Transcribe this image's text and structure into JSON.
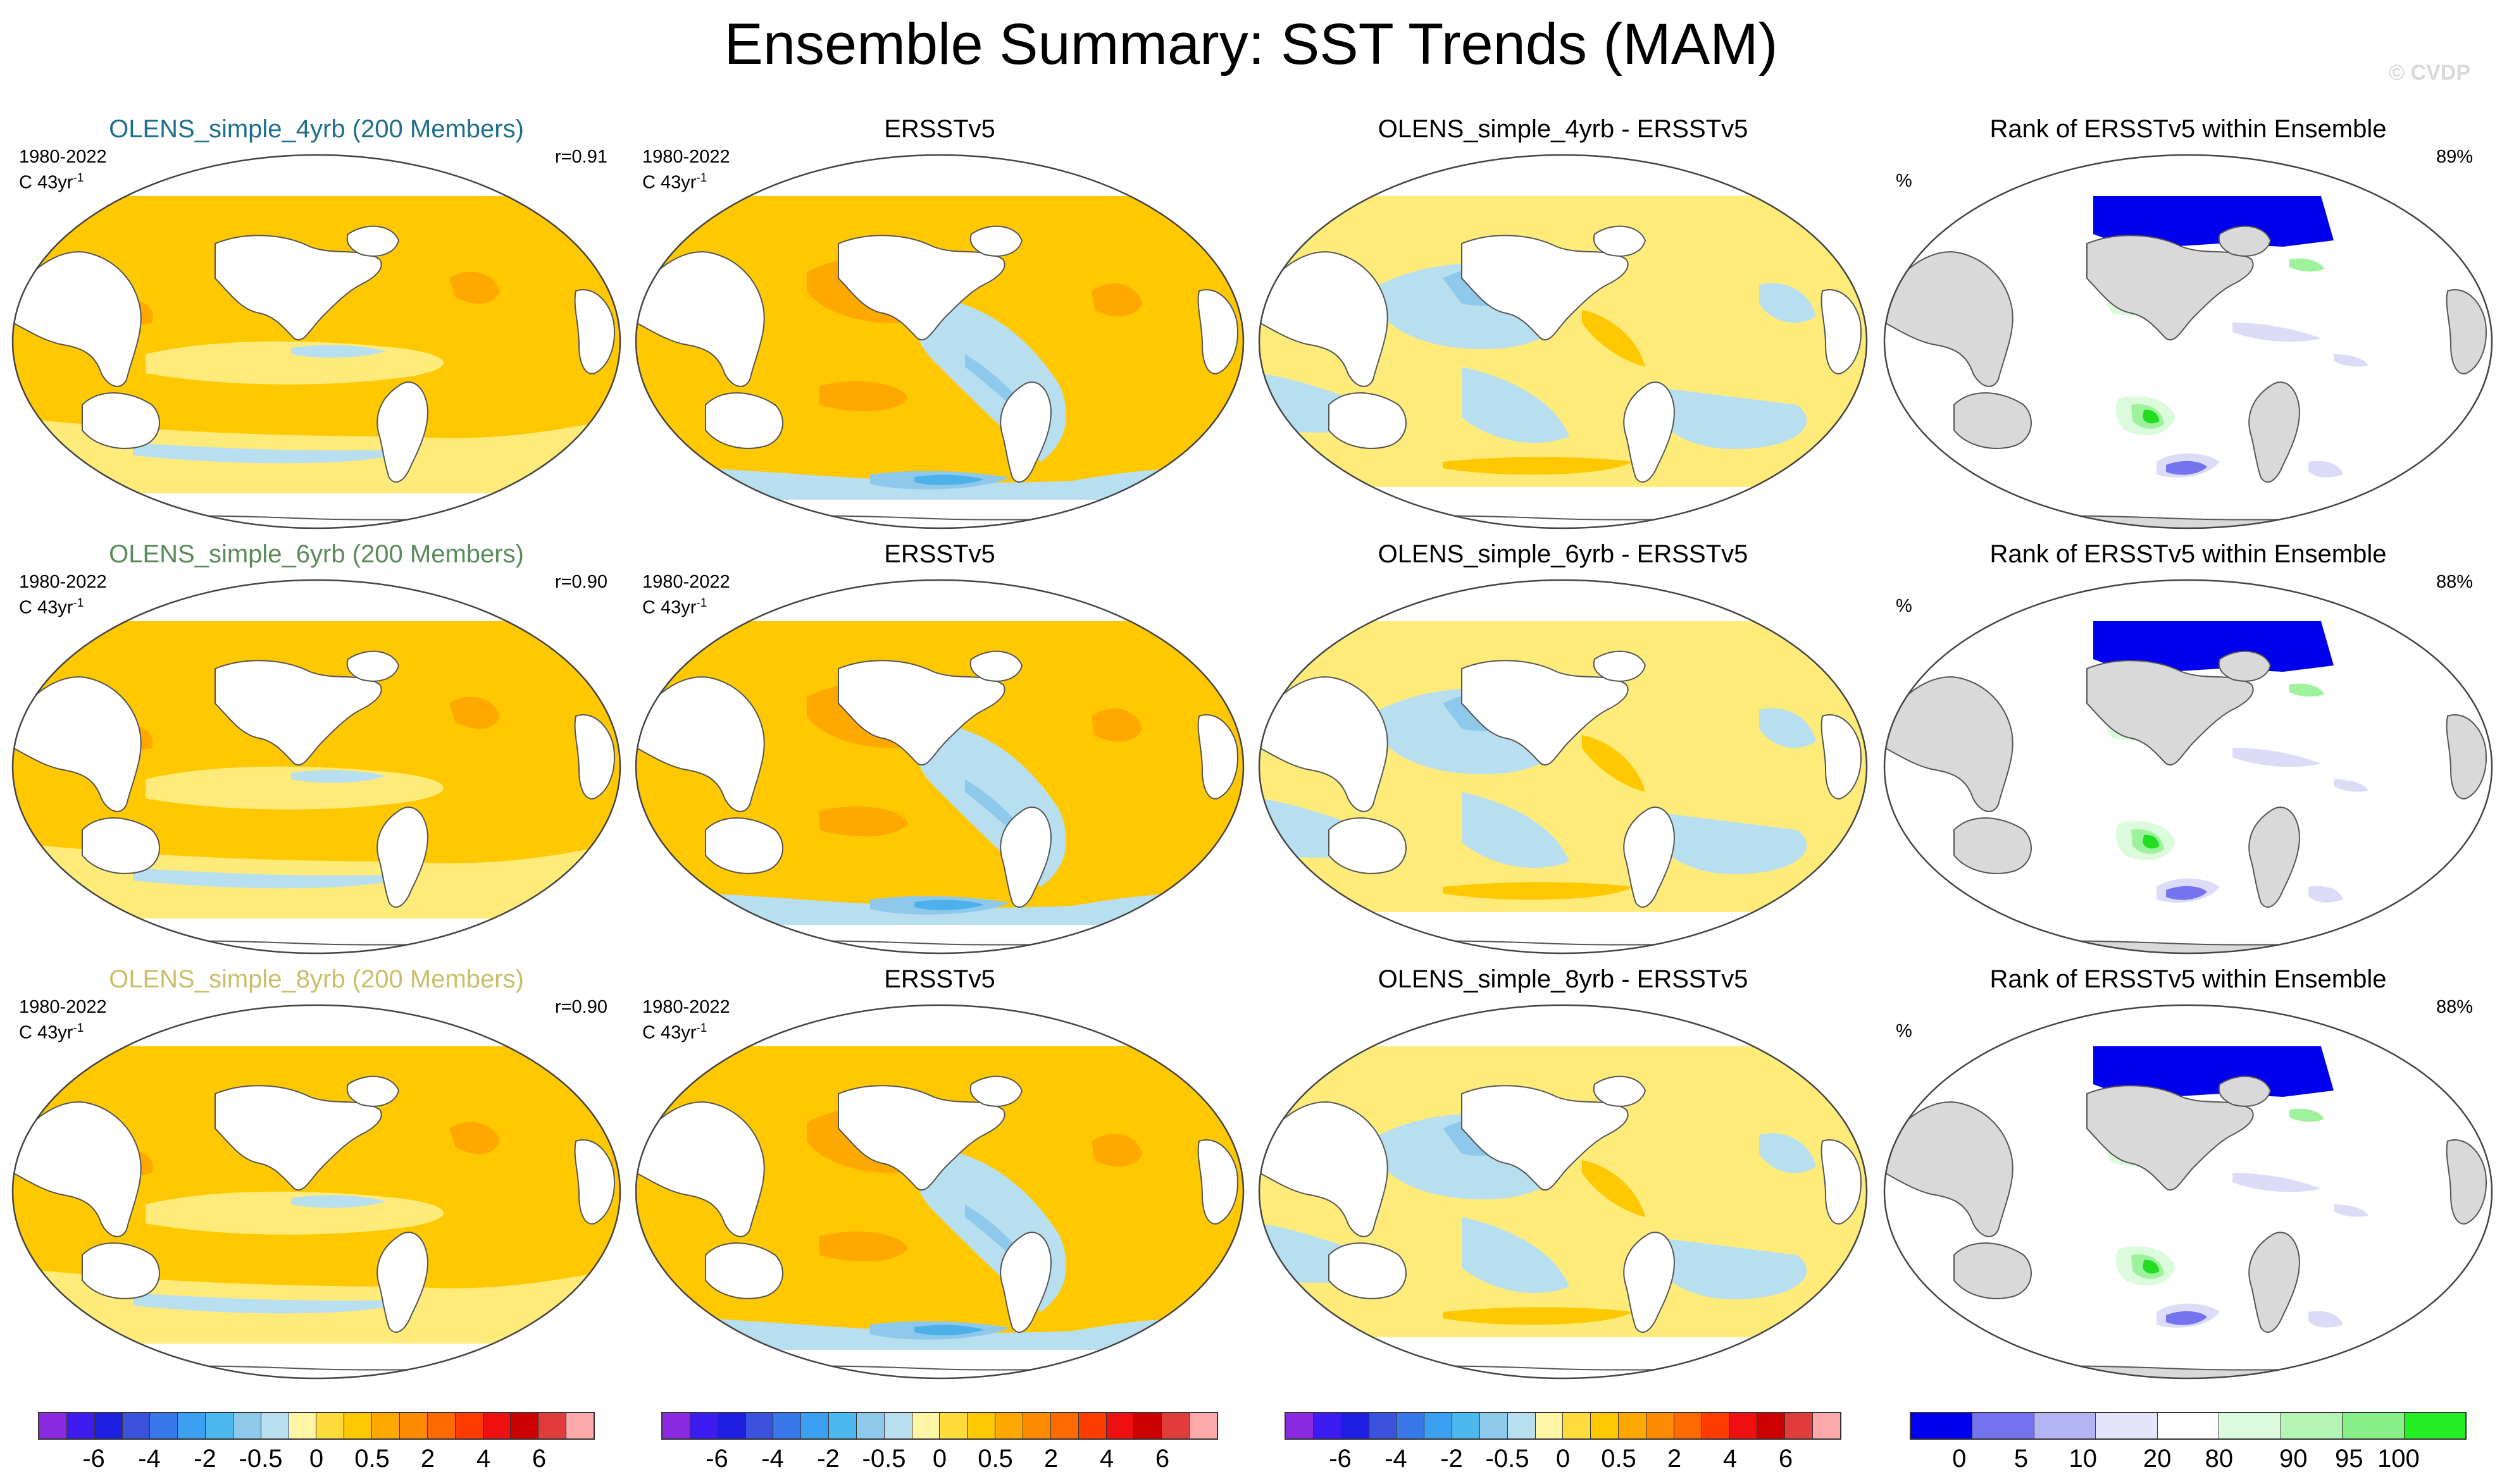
{
  "title": "Ensemble Summary: SST Trends (MAM)",
  "watermark": "© CVDP",
  "rows": [
    {
      "ens_title": "OLENS_simple_4yrb (200 Members)",
      "ens_color": "#1f6f8b",
      "period": "1980-2022",
      "units": "C 43yr",
      "units_sup": "-1",
      "corr": "r=0.91",
      "obs_title": "ERSSTv5",
      "diff_title": "OLENS_simple_4yrb - ERSSTv5",
      "rank_title": "Rank of ERSSTv5 within Ensemble",
      "rank_unit": "%",
      "rank_pct": "89%"
    },
    {
      "ens_title": "OLENS_simple_6yrb (200 Members)",
      "ens_color": "#5b8a5b",
      "period": "1980-2022",
      "units": "C 43yr",
      "units_sup": "-1",
      "corr": "r=0.90",
      "obs_title": "ERSSTv5",
      "diff_title": "OLENS_simple_6yrb - ERSSTv5",
      "rank_title": "Rank of ERSSTv5 within Ensemble",
      "rank_unit": "%",
      "rank_pct": "88%"
    },
    {
      "ens_title": "OLENS_simple_8yrb (200 Members)",
      "ens_color": "#c8bf6a",
      "period": "1980-2022",
      "units": "C 43yr",
      "units_sup": "-1",
      "corr": "r=0.90",
      "obs_title": "ERSSTv5",
      "diff_title": "OLENS_simple_8yrb - ERSSTv5",
      "rank_title": "Rank of ERSSTv5 within Ensemble",
      "rank_unit": "%",
      "rank_pct": "88%"
    }
  ],
  "colors": {
    "land": "#ffffff",
    "rank_land": "#d9d9d9",
    "coast": "#555555",
    "warm1": "#ffeb7a",
    "warm2": "#ffc800",
    "warm3": "#ffa800",
    "warm4": "#f07a00",
    "cool1": "#b7dff0",
    "cool2": "#8ec9ec",
    "cool3": "#4cb0ea",
    "neutral": "#ffffff",
    "rank_low": "#0000ee",
    "rank_low2": "#7474ee",
    "rank_low3": "#dcdcf8",
    "rank_high1": "#dcfadc",
    "rank_high2": "#9ef29e",
    "rank_high3": "#22dd22"
  },
  "chart_data": {
    "type": "heatmap",
    "projection": "Robinson, Pacific-centered",
    "sst_colorbar": {
      "colors": [
        "#8a2be2",
        "#3c1cf0",
        "#1e1ee0",
        "#3a52dc",
        "#3978e8",
        "#3ca0f0",
        "#4cb8ee",
        "#8ec9ec",
        "#b7dff0",
        "#fff5a5",
        "#ffdc3c",
        "#ffc800",
        "#ffa800",
        "#ff8c00",
        "#ff6a00",
        "#ff3c00",
        "#ee1010",
        "#cc0000",
        "#e03c3c",
        "#ffaaaa"
      ],
      "labels": [
        "-6",
        "-4",
        "-2",
        "-0.5",
        "0",
        "0.5",
        "2",
        "4",
        "6"
      ],
      "label_at_boundary": [
        2,
        4,
        6,
        8,
        10,
        12,
        14,
        16,
        18
      ]
    },
    "rank_colorbar": {
      "colors": [
        "#0000ee",
        "#7474ee",
        "#b4b4f4",
        "#e4e4fa",
        "#ffffff",
        "#dcfadc",
        "#b4f4b4",
        "#88ee88",
        "#22ee22"
      ],
      "labels": [
        "0",
        "5",
        "10",
        "20",
        "80",
        "90",
        "95",
        "100"
      ],
      "label_at_boundary": [
        0.8,
        1.8,
        2.8,
        4,
        5,
        6.2,
        7.1,
        7.9
      ]
    },
    "panels_per_row": [
      "ensemble mean trend",
      "ERSSTv5 trend",
      "ensemble minus ERSSTv5",
      "rank of ERSSTv5 within ensemble"
    ],
    "pattern_corr": [
      0.91,
      0.9,
      0.9
    ],
    "rank_area_pct": [
      89,
      88,
      88
    ]
  }
}
